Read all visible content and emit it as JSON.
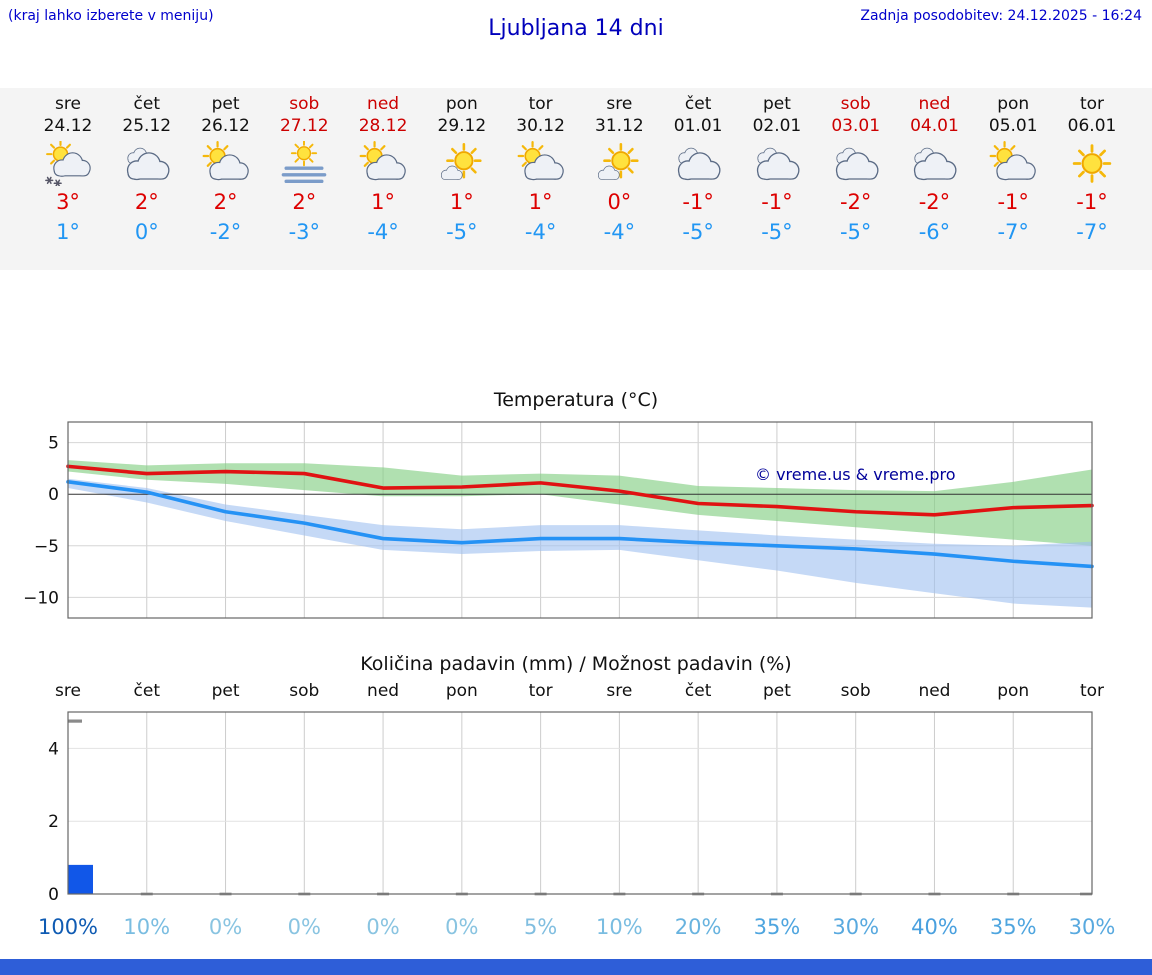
{
  "header": {
    "hint": "(kraj lahko izberete v meniju)",
    "title": "Ljubljana 14 dni",
    "updated": "Zadnja posodobitev: 24.12.2025 - 16:24"
  },
  "forecast": {
    "days": [
      {
        "name": "sre",
        "date": "24.12",
        "weekend": false,
        "icon": "sun-cloud-snow",
        "tmax": "3°",
        "tmin": "1°"
      },
      {
        "name": "čet",
        "date": "25.12",
        "weekend": false,
        "icon": "cloud",
        "tmax": "2°",
        "tmin": "0°"
      },
      {
        "name": "pet",
        "date": "26.12",
        "weekend": false,
        "icon": "sun-cloud",
        "tmax": "2°",
        "tmin": "-2°"
      },
      {
        "name": "sob",
        "date": "27.12",
        "weekend": true,
        "icon": "fog-sun",
        "tmax": "2°",
        "tmin": "-3°"
      },
      {
        "name": "ned",
        "date": "28.12",
        "weekend": true,
        "icon": "sun-cloud",
        "tmax": "1°",
        "tmin": "-4°"
      },
      {
        "name": "pon",
        "date": "29.12",
        "weekend": false,
        "icon": "sun-small-cloud",
        "tmax": "1°",
        "tmin": "-5°"
      },
      {
        "name": "tor",
        "date": "30.12",
        "weekend": false,
        "icon": "sun-cloud",
        "tmax": "1°",
        "tmin": "-4°"
      },
      {
        "name": "sre",
        "date": "31.12",
        "weekend": false,
        "icon": "sun-small-cloud",
        "tmax": "0°",
        "tmin": "-4°"
      },
      {
        "name": "čet",
        "date": "01.01",
        "weekend": false,
        "icon": "cloud",
        "tmax": "-1°",
        "tmin": "-5°"
      },
      {
        "name": "pet",
        "date": "02.01",
        "weekend": false,
        "icon": "cloud",
        "tmax": "-1°",
        "tmin": "-5°"
      },
      {
        "name": "sob",
        "date": "03.01",
        "weekend": true,
        "icon": "cloud",
        "tmax": "-2°",
        "tmin": "-5°"
      },
      {
        "name": "ned",
        "date": "04.01",
        "weekend": true,
        "icon": "cloud",
        "tmax": "-2°",
        "tmin": "-6°"
      },
      {
        "name": "pon",
        "date": "05.01",
        "weekend": false,
        "icon": "sun-cloud",
        "tmax": "-1°",
        "tmin": "-7°"
      },
      {
        "name": "tor",
        "date": "06.01",
        "weekend": false,
        "icon": "sun",
        "tmax": "-1°",
        "tmin": "-7°"
      }
    ]
  },
  "chart_data": [
    {
      "type": "line",
      "title": "Temperatura (°C)",
      "categories": [
        "sre 24.12",
        "čet 25.12",
        "pet 26.12",
        "sob 27.12",
        "ned 28.12",
        "pon 29.12",
        "tor 30.12",
        "sre 31.12",
        "čet 01.01",
        "pet 02.01",
        "sob 03.01",
        "ned 04.01",
        "pon 05.01",
        "tor 06.01"
      ],
      "ylim": [
        -12,
        7
      ],
      "yticks": [
        5,
        0,
        -5,
        -10
      ],
      "series": [
        {
          "name": "max",
          "color": "#e01212",
          "values": [
            2.7,
            2,
            2.2,
            2,
            0.6,
            0.7,
            1.1,
            0.3,
            -0.9,
            -1.2,
            -1.7,
            -2,
            -1.3,
            -1.1
          ]
        },
        {
          "name": "min",
          "color": "#2592f5",
          "values": [
            1.2,
            0.2,
            -1.7,
            -2.8,
            -4.3,
            -4.7,
            -4.3,
            -4.3,
            -4.7,
            -5,
            -5.3,
            -5.8,
            -6.5,
            -7
          ]
        }
      ],
      "bands": [
        {
          "name": "max-range",
          "color": "#86cf86",
          "opacity": 0.65,
          "upper": [
            3.3,
            2.8,
            3,
            3,
            2.6,
            1.8,
            2,
            1.8,
            0.8,
            0.6,
            0.4,
            0.3,
            1.2,
            2.4
          ],
          "lower": [
            2.2,
            1.4,
            1,
            0.4,
            -0.2,
            -0.2,
            0,
            -1,
            -2,
            -2.6,
            -3.2,
            -3.8,
            -4.4,
            -5
          ]
        },
        {
          "name": "min-range",
          "color": "#9ec0f0",
          "opacity": 0.6,
          "upper": [
            1.5,
            0.6,
            -1,
            -2,
            -3,
            -3.4,
            -3,
            -3,
            -3.5,
            -4,
            -4.4,
            -4.8,
            -5,
            -4.6
          ],
          "lower": [
            0.6,
            -0.8,
            -2.6,
            -4,
            -5.4,
            -5.8,
            -5.5,
            -5.4,
            -6.4,
            -7.4,
            -8.6,
            -9.6,
            -10.6,
            -11
          ]
        }
      ],
      "annotation": "© vreme.us & vreme.pro"
    },
    {
      "type": "bar",
      "title": "Količina padavin (mm) / Možnost padavin (%)",
      "categories": [
        "sre",
        "čet",
        "pet",
        "sob",
        "ned",
        "pon",
        "tor",
        "sre",
        "čet",
        "pet",
        "sob",
        "ned",
        "pon",
        "tor"
      ],
      "values": [
        0.8,
        0,
        0,
        0,
        0,
        0,
        0,
        0,
        0,
        0,
        0,
        0,
        0,
        0
      ],
      "probabilities_pct": [
        100,
        10,
        0,
        0,
        0,
        0,
        5,
        10,
        20,
        35,
        30,
        40,
        35,
        30
      ],
      "prob_labels": [
        "100%",
        "10%",
        "0%",
        "0%",
        "0%",
        "0%",
        "5%",
        "10%",
        "20%",
        "35%",
        "30%",
        "40%",
        "35%",
        "30%"
      ],
      "ylim": [
        0,
        5
      ],
      "yticks": [
        0,
        2,
        4
      ],
      "bar_color": "#1157e8",
      "marker_value": 4.75
    }
  ],
  "colors": {
    "header_blue": "#0000cc",
    "weekend_red": "#cc0000",
    "tmax_red": "#dd0000",
    "tmin_blue": "#2196f3",
    "strip_bg": "#f4f4f4",
    "footer_blue": "#2e5ed8"
  }
}
